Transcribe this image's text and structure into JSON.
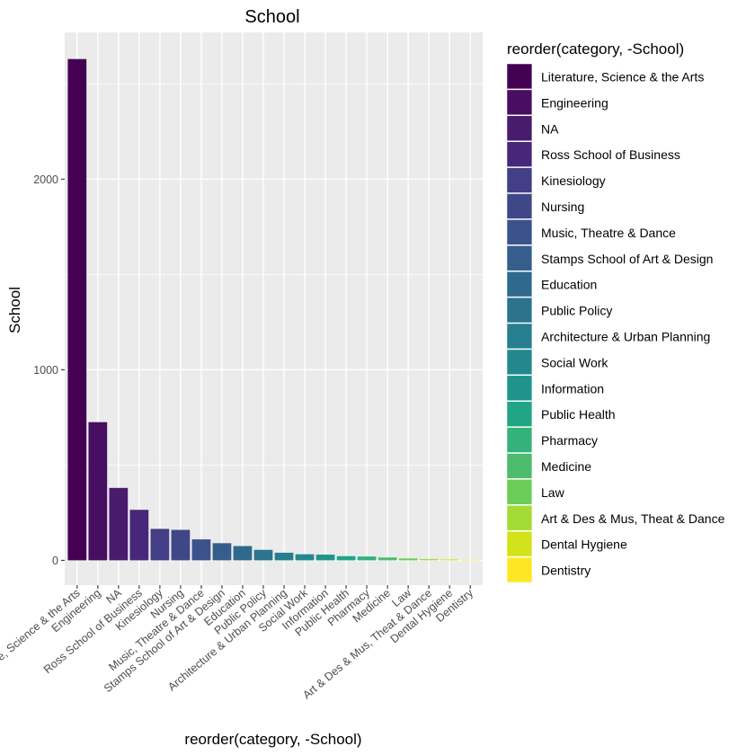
{
  "chart_data": {
    "type": "bar",
    "title": "School",
    "xlabel": "reorder(category, -School)",
    "ylabel": "School",
    "ylim": [
      -130,
      2770
    ],
    "yticks": [
      0,
      1000,
      2000
    ],
    "grid": true,
    "legend_placement": "right",
    "legend_title": "reorder(category, -School)",
    "categories": [
      "Literature, Science & the Arts",
      "Engineering",
      "NA",
      "Ross School of Business",
      "Kinesiology",
      "Nursing",
      "Music, Theatre & Dance",
      "Stamps School of Art & Design",
      "Education",
      "Public Policy",
      "Architecture & Urban Planning",
      "Social Work",
      "Information",
      "Public Health",
      "Pharmacy",
      "Medicine",
      "Law",
      "Art & Des & Mus, Theat & Dance",
      "Dental Hygiene",
      "Dentistry"
    ],
    "values": [
      2630,
      725,
      380,
      265,
      165,
      160,
      110,
      90,
      75,
      55,
      40,
      32,
      30,
      22,
      20,
      15,
      10,
      7,
      5,
      3
    ],
    "colors": [
      "#440154",
      "#470E61",
      "#481B6D",
      "#46277A",
      "#433E85",
      "#3F4788",
      "#3A538B",
      "#355E8D",
      "#30698E",
      "#2C738E",
      "#277E8E",
      "#23888E",
      "#1F938C",
      "#21A585",
      "#33B27A",
      "#4DBC6C",
      "#6DCD59",
      "#A5DB36",
      "#D2E21B",
      "#FDE725"
    ]
  }
}
